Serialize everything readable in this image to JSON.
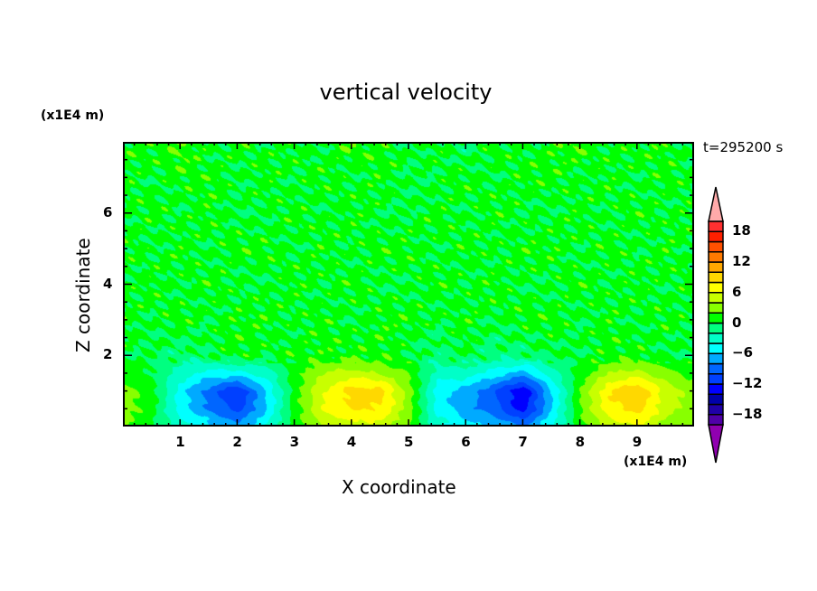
{
  "chart_data": {
    "type": "heatmap",
    "subtype": "filled-contour",
    "title": "vertical velocity",
    "xlabel": "X coordinate",
    "ylabel": "Z coordinate",
    "x_unit": "(x1E4 m)",
    "y_unit": "(x1E4 m)",
    "time_label": "t=295200 s",
    "xlim": [
      0,
      10
    ],
    "ylim": [
      0,
      8
    ],
    "xticks": [
      "1",
      "2",
      "3",
      "4",
      "5",
      "6",
      "7",
      "8",
      "9"
    ],
    "yticks": [
      "2",
      "4",
      "6"
    ],
    "grid": false,
    "x": [
      0,
      0.5,
      1,
      1.5,
      2,
      2.5,
      3,
      3.5,
      4,
      4.5,
      5,
      5.5,
      6,
      6.5,
      7,
      7.5,
      8,
      8.5,
      9,
      9.5,
      10
    ],
    "z": [
      0,
      0.5,
      1,
      1.5,
      2,
      3,
      4,
      5,
      6,
      7,
      8
    ],
    "values": [
      [
        2,
        0,
        -3,
        -5,
        -7,
        -4,
        1,
        4,
        5,
        5,
        2,
        -3,
        -5,
        -6,
        -8,
        -4,
        1,
        5,
        6,
        3,
        2
      ],
      [
        3,
        1,
        -5,
        -8,
        -11,
        -6,
        1,
        6,
        8,
        8,
        3,
        -5,
        -7,
        -9,
        -13,
        -6,
        2,
        7,
        9,
        5,
        3
      ],
      [
        3,
        1,
        -5,
        -9,
        -12,
        -6,
        1,
        6,
        9,
        9,
        3,
        -5,
        -7,
        -10,
        -14,
        -6,
        2,
        8,
        10,
        5,
        3
      ],
      [
        1,
        0,
        -3,
        -5,
        -5,
        -3,
        1,
        4,
        5,
        4,
        2,
        -3,
        -3,
        -5,
        -7,
        -3,
        1,
        4,
        5,
        3,
        1
      ],
      [
        0,
        0,
        -1,
        0,
        1,
        0,
        1,
        1,
        1,
        1,
        0,
        -1,
        0,
        -1,
        -1,
        0,
        0,
        1,
        1,
        0,
        0
      ],
      [
        1,
        0,
        1,
        0,
        1,
        1,
        0,
        1,
        0,
        1,
        1,
        0,
        1,
        0,
        1,
        1,
        0,
        1,
        0,
        1,
        0
      ],
      [
        0,
        1,
        0,
        1,
        0,
        0,
        1,
        0,
        1,
        0,
        0,
        1,
        0,
        1,
        0,
        0,
        1,
        0,
        1,
        0,
        1
      ],
      [
        1,
        0,
        1,
        0,
        1,
        1,
        0,
        1,
        0,
        1,
        1,
        0,
        1,
        0,
        1,
        1,
        0,
        1,
        0,
        1,
        0
      ],
      [
        0,
        1,
        0,
        1,
        0,
        0,
        1,
        0,
        1,
        0,
        0,
        1,
        0,
        1,
        0,
        0,
        1,
        0,
        1,
        0,
        1
      ],
      [
        1,
        0,
        1,
        1,
        0,
        1,
        0,
        1,
        0,
        1,
        0,
        0,
        1,
        0,
        1,
        1,
        0,
        1,
        0,
        1,
        0
      ],
      [
        1,
        1,
        2,
        0,
        1,
        0,
        1,
        0,
        2,
        1,
        0,
        1,
        -1,
        1,
        0,
        1,
        2,
        0,
        1,
        1,
        0
      ]
    ],
    "colorbar": {
      "levels_min": -20,
      "levels_max": 20,
      "step": 2,
      "tick_labels": [
        "18",
        "12",
        "6",
        "0",
        "-6",
        "-12",
        "-18"
      ],
      "tick_values": [
        18,
        12,
        6,
        0,
        -6,
        -12,
        -18
      ],
      "colors_low_to_high": [
        "#5000a8",
        "#2000a8",
        "#0000aa",
        "#0000ff",
        "#0040ff",
        "#0066ff",
        "#00aaff",
        "#00ffff",
        "#00ffc8",
        "#00ff80",
        "#00ff00",
        "#88ff00",
        "#c8ff00",
        "#ffff00",
        "#ffd800",
        "#ffa800",
        "#ff7a00",
        "#ff5000",
        "#ff2000",
        "#ff3030"
      ],
      "over_color": "#ffaaaa",
      "under_color": "#9000b0"
    }
  }
}
